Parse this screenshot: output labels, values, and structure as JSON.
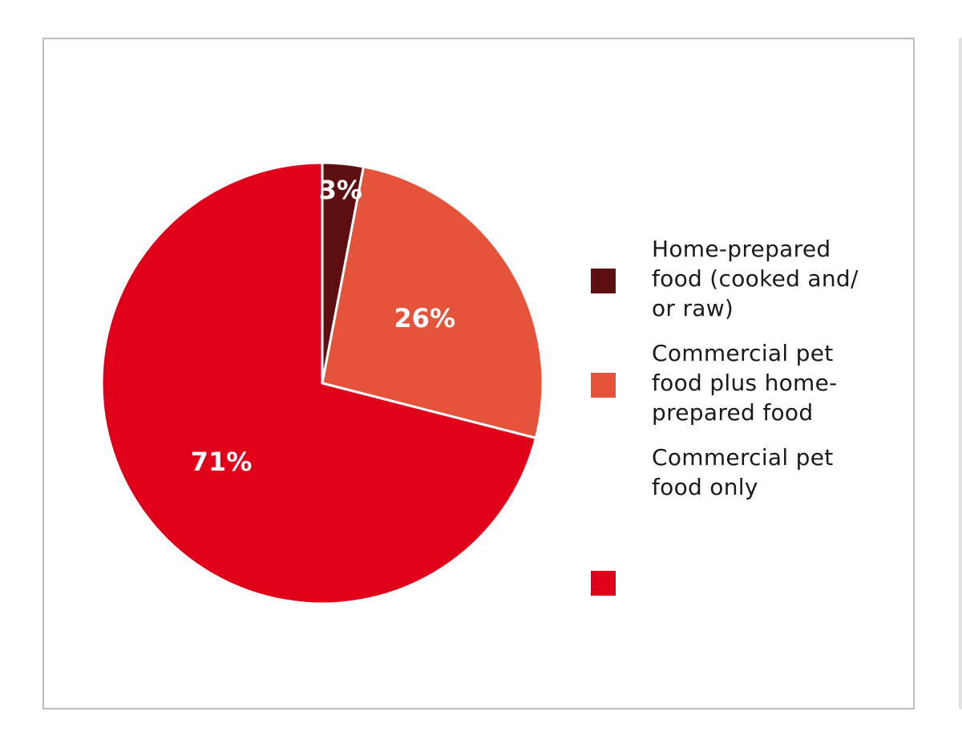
{
  "chart_data": {
    "type": "pie",
    "title": "",
    "start_angle_deg": 0,
    "direction": "clockwise",
    "slices": [
      {
        "label": "Home-prepared\nfood (cooked and/\nor raw)",
        "value": 3,
        "value_label": "3%",
        "color": "#5c0e10"
      },
      {
        "label": "Commercial pet\nfood plus home-\nprepared food",
        "value": 26,
        "value_label": "26%",
        "color": "#e4533a"
      },
      {
        "label": "Commercial pet\nfood only",
        "value": 71,
        "value_label": "71%",
        "color": "#e0001a"
      }
    ],
    "legend_position": "right"
  }
}
